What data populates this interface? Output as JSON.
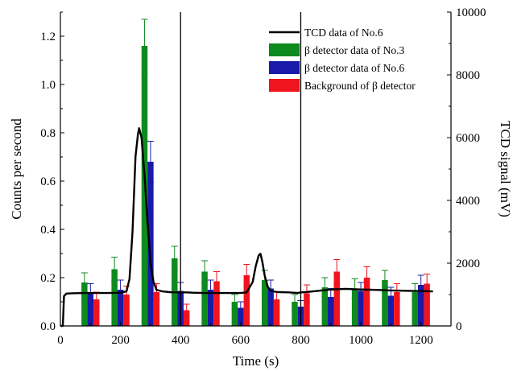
{
  "chart_data": {
    "type": "bar",
    "xlabel": "Time (s)",
    "ylabel": "Counts per second",
    "y2label": "TCD signal (mV)",
    "xlim": [
      0,
      1300
    ],
    "ylim": [
      0,
      1.3
    ],
    "y2lim": [
      0,
      10000
    ],
    "xticks": [
      0,
      200,
      400,
      600,
      800,
      1000,
      1200
    ],
    "yticks": [
      0.0,
      0.2,
      0.4,
      0.6,
      0.8,
      1.0,
      1.2
    ],
    "y2ticks": [
      0,
      2000,
      4000,
      6000,
      8000,
      10000
    ],
    "xtick_labels": [
      "0",
      "200",
      "400",
      "600",
      "800",
      "1000",
      "1200"
    ],
    "ytick_labels": [
      "0.0",
      "0.2",
      "0.4",
      "0.6",
      "0.8",
      "1.0",
      "1.2"
    ],
    "y2tick_labels": [
      "0",
      "2000",
      "4000",
      "6000",
      "8000",
      "10000"
    ],
    "vertical_lines": [
      400,
      800
    ],
    "bar_width": 20,
    "legend_position": "top-right",
    "grid": false,
    "series": [
      {
        "name": "TCD data of No.6",
        "kind": "line",
        "axis": "right",
        "color": "#000000",
        "x": [
          0,
          8,
          12,
          20,
          40,
          80,
          120,
          160,
          200,
          220,
          230,
          240,
          250,
          258,
          262,
          270,
          280,
          290,
          300,
          310,
          320,
          340,
          360,
          380,
          400,
          420,
          440,
          480,
          520,
          560,
          600,
          620,
          640,
          650,
          660,
          666,
          672,
          680,
          690,
          700,
          720,
          760,
          790,
          800,
          820,
          840,
          860,
          900,
          950,
          1000,
          1050,
          1100,
          1150,
          1200,
          1240
        ],
        "y": [
          0,
          0,
          950,
          1030,
          1040,
          1050,
          1050,
          1050,
          1060,
          1100,
          1500,
          3000,
          5400,
          6100,
          6300,
          6000,
          4800,
          3300,
          2000,
          1400,
          1150,
          1100,
          1080,
          1070,
          1070,
          1070,
          1060,
          1050,
          1050,
          1050,
          1050,
          1070,
          1400,
          1900,
          2250,
          2300,
          2050,
          1600,
          1250,
          1120,
          1080,
          1070,
          1050,
          1070,
          1080,
          1100,
          1120,
          1160,
          1180,
          1160,
          1150,
          1130,
          1120,
          1110,
          1100
        ]
      },
      {
        "name": "β detector data of No.3",
        "kind": "bar",
        "axis": "left",
        "color": "#0f8a1f",
        "offset": -20,
        "x": [
          100,
          200,
          300,
          400,
          500,
          600,
          700,
          800,
          900,
          1000,
          1100,
          1200
        ],
        "y": [
          0.18,
          0.235,
          1.16,
          0.28,
          0.225,
          0.1,
          0.19,
          0.1,
          0.16,
          0.155,
          0.19,
          0.14
        ],
        "err": [
          0.04,
          0.05,
          0.11,
          0.05,
          0.045,
          0.03,
          0.04,
          0.03,
          0.04,
          0.04,
          0.04,
          0.035
        ]
      },
      {
        "name": "β detector data of No.6",
        "kind": "bar",
        "axis": "left",
        "color": "#1a1aa8",
        "offset": 0,
        "x": [
          100,
          200,
          300,
          400,
          500,
          600,
          700,
          800,
          900,
          1000,
          1100,
          1200
        ],
        "y": [
          0.14,
          0.15,
          0.68,
          0.145,
          0.15,
          0.075,
          0.155,
          0.08,
          0.12,
          0.145,
          0.125,
          0.17
        ],
        "err": [
          0.035,
          0.04,
          0.085,
          0.035,
          0.04,
          0.025,
          0.035,
          0.025,
          0.035,
          0.035,
          0.035,
          0.04
        ]
      },
      {
        "name": "Background of β detector",
        "kind": "bar",
        "axis": "left",
        "color": "#f0141e",
        "offset": 20,
        "x": [
          100,
          200,
          300,
          400,
          500,
          600,
          700,
          800,
          900,
          1000,
          1100,
          1200
        ],
        "y": [
          0.11,
          0.13,
          0.14,
          0.065,
          0.185,
          0.21,
          0.11,
          0.135,
          0.225,
          0.2,
          0.14,
          0.175
        ],
        "err": [
          0.03,
          0.035,
          0.035,
          0.025,
          0.04,
          0.045,
          0.03,
          0.035,
          0.05,
          0.045,
          0.035,
          0.04
        ]
      }
    ]
  }
}
